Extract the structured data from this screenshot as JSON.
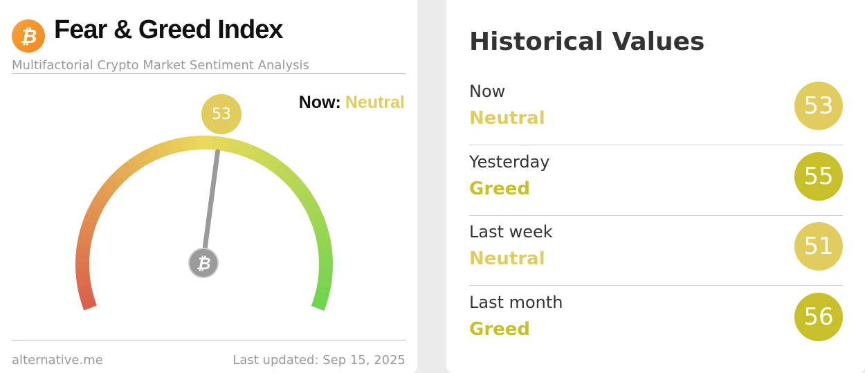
{
  "header": {
    "logo_icon": "bitcoin-icon",
    "title": "Fear & Greed Index",
    "subtitle": "Multifactorial Crypto Market Sentiment Analysis"
  },
  "gauge": {
    "value": "53",
    "min": 0,
    "max": 100,
    "now_label": "Now:",
    "classification": "Neutral",
    "center_icon": "bitcoin-icon",
    "colors": {
      "low": "#d9614a",
      "mid": "#ecd95a",
      "high": "#6fd44e"
    }
  },
  "footer": {
    "source": "alternative.me",
    "updated": "Last updated: Sep 15, 2025"
  },
  "historical": {
    "title": "Historical Values",
    "rows": [
      {
        "label": "Now",
        "classification": "Neutral",
        "value": "53",
        "color": "#e0cd5d"
      },
      {
        "label": "Yesterday",
        "classification": "Greed",
        "value": "55",
        "color": "#c8c02a"
      },
      {
        "label": "Last week",
        "classification": "Neutral",
        "value": "51",
        "color": "#e0cd5d"
      },
      {
        "label": "Last month",
        "classification": "Greed",
        "value": "56",
        "color": "#c8c02a"
      }
    ]
  }
}
